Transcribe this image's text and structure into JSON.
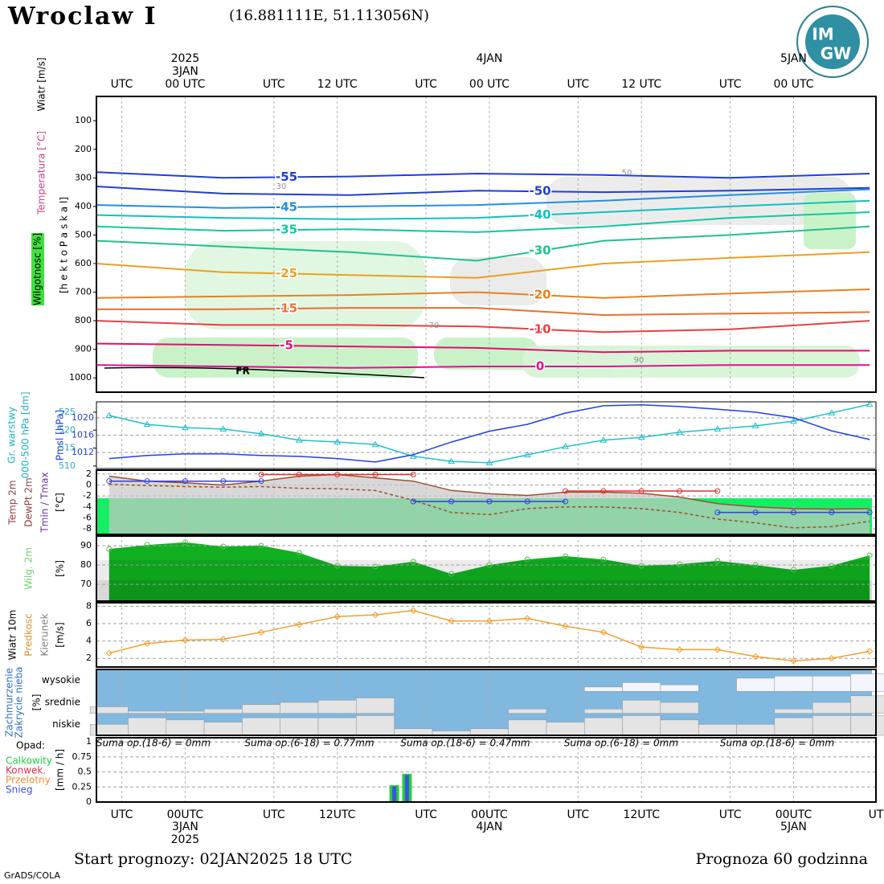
{
  "header": {
    "title": "Wroclaw I",
    "coords": "(16.881111E, 51.113056N)",
    "logo": [
      "IM",
      "GW"
    ],
    "start": "Start prognozy: 02JAN2025 18 UTC",
    "horizon": "Prognoza 60 godzinna",
    "credit": "GrADS/COLA"
  },
  "time": {
    "xlim": [
      -1,
      60.5
    ],
    "hours": [
      0,
      3,
      6,
      9,
      12,
      15,
      18,
      21,
      24,
      27,
      30,
      33,
      36,
      39,
      42,
      45,
      48,
      51,
      54,
      57,
      60
    ],
    "top_ticks": [
      {
        "value": 1,
        "label": "UTC"
      },
      {
        "value": 6,
        "label": "00 UTC"
      },
      {
        "value": 13,
        "label": "UTC"
      },
      {
        "value": 18,
        "label": "12 UTC"
      },
      {
        "value": 25,
        "label": "UTC"
      },
      {
        "value": 30,
        "label": "00 UTC"
      },
      {
        "value": 37,
        "label": "UTC"
      },
      {
        "value": 42,
        "label": "12 UTC"
      },
      {
        "value": 49,
        "label": "UTC"
      },
      {
        "value": 54,
        "label": "00 UTC"
      }
    ],
    "top_dates": [
      {
        "value": 6,
        "label": "2025"
      },
      {
        "value": 6,
        "label": "3JAN"
      },
      {
        "value": 30,
        "label": "4JAN"
      },
      {
        "value": 54,
        "label": "5JAN"
      }
    ],
    "bottom_ticks": [
      {
        "value": 1,
        "label": "UTC"
      },
      {
        "value": 6,
        "label": "00UTC"
      },
      {
        "value": 13,
        "label": "UTC"
      },
      {
        "value": 18,
        "label": "12UTC"
      },
      {
        "value": 25,
        "label": "UTC"
      },
      {
        "value": 30,
        "label": "00UTC"
      },
      {
        "value": 37,
        "label": "UTC"
      },
      {
        "value": 42,
        "label": "12UTC"
      },
      {
        "value": 49,
        "label": "UTC"
      },
      {
        "value": 54,
        "label": "00UTC"
      },
      {
        "value": 60.5,
        "label": "UT"
      }
    ],
    "bottom_dates": [
      {
        "value": 6,
        "label": "3JAN"
      },
      {
        "value": 6,
        "label": "2025"
      },
      {
        "value": 30,
        "label": "4JAN"
      },
      {
        "value": 54,
        "label": "5JAN"
      }
    ]
  },
  "chart_data": [
    {
      "type": "contour",
      "ylabels": [
        "Wiatr [m/s]",
        "Temperatura [°C]",
        "Wilgotnosc [%]",
        "[h e k t o P a s k a l]"
      ],
      "ylim": [
        1050,
        15
      ],
      "yticks": [
        100,
        200,
        300,
        400,
        500,
        600,
        700,
        800,
        900,
        1000
      ],
      "x": [
        -1,
        9,
        19,
        29,
        39,
        49,
        60
      ],
      "series": [
        {
          "name": "-55",
          "color": "#2040d0",
          "values": [
            280,
            300,
            295,
            285,
            290,
            300,
            285
          ]
        },
        {
          "name": "-50",
          "color": "#2040d0",
          "values": [
            330,
            355,
            360,
            345,
            350,
            345,
            335
          ]
        },
        {
          "name": "-45",
          "color": "#2090e0",
          "values": [
            395,
            405,
            400,
            395,
            380,
            360,
            340
          ]
        },
        {
          "name": "-40",
          "color": "#10c0c0",
          "values": [
            430,
            440,
            445,
            440,
            420,
            400,
            380
          ]
        },
        {
          "name": "-35",
          "color": "#10c8a0",
          "values": [
            470,
            485,
            480,
            490,
            470,
            440,
            420
          ]
        },
        {
          "name": "-30",
          "color": "#20c090",
          "values": [
            520,
            540,
            560,
            590,
            520,
            500,
            470
          ]
        },
        {
          "name": "-25",
          "color": "#e8a020",
          "values": [
            600,
            630,
            640,
            650,
            600,
            580,
            560
          ]
        },
        {
          "name": "-20",
          "color": "#e88020",
          "values": [
            720,
            715,
            710,
            700,
            720,
            705,
            690
          ]
        },
        {
          "name": "-15",
          "color": "#e87030",
          "values": [
            760,
            760,
            755,
            755,
            780,
            775,
            770
          ]
        },
        {
          "name": "-10",
          "color": "#e84040",
          "values": [
            800,
            815,
            815,
            820,
            840,
            830,
            800
          ]
        },
        {
          "name": "-5",
          "color": "#e01070",
          "values": [
            880,
            885,
            890,
            895,
            910,
            905,
            905
          ]
        },
        {
          "name": "0",
          "color": "#e01090",
          "values": [
            955,
            960,
            965,
            960,
            960,
            955,
            955
          ]
        }
      ],
      "contour_labels": [
        "30",
        "50",
        "70",
        "90"
      ],
      "annotation": "FR"
    },
    {
      "type": "line",
      "ylabels": [
        "Gr. warstwy",
        "000-500 hPa [dm]",
        "Pmsl [hPa]"
      ],
      "ylim": [
        509.3,
        527.9
      ],
      "yticks": [
        510,
        515,
        520,
        525
      ],
      "y2lim": [
        1008.3,
        1023.7
      ],
      "y2ticks": [
        1012,
        1016,
        1020
      ],
      "series": [
        {
          "color": "#20c0c8",
          "marker": "triangle",
          "values": [
            524.1,
            521.6,
            520.7,
            520.3,
            519,
            517.2,
            516.7,
            516,
            512.7,
            511.3,
            510.9,
            513.1,
            515.4,
            517.2,
            518,
            519.4,
            520.3,
            521.2,
            522.5,
            524.8,
            527.2
          ]
        },
        {
          "color": "#2040e0",
          "axis": "y2",
          "values": [
            1010.6,
            1011.3,
            1011.7,
            1011.7,
            1011.3,
            1011.1,
            1010.6,
            1009.8,
            1011.5,
            1014.4,
            1016.9,
            1018.5,
            1021.1,
            1022.8,
            1023,
            1022.6,
            1022,
            1021.3,
            1020,
            1017,
            1015
          ]
        }
      ]
    },
    {
      "type": "line",
      "ylabels": [
        "Temp 2m",
        "DewPt 2m",
        "Tmin / Tmax",
        "[°C]"
      ],
      "ylim": [
        -9,
        2.7
      ],
      "yticks": [
        2,
        0,
        -2,
        -4,
        -6,
        -8
      ],
      "series": [
        {
          "color": "#a05030",
          "values": [
            1.6,
            0.7,
            0.4,
            0,
            0.7,
            1.6,
            1.9,
            1.3,
            0.7,
            -1,
            -1.6,
            -1.9,
            -1.3,
            -1.3,
            -1.5,
            -2.2,
            -3.4,
            -4,
            -4.3,
            -4.4,
            -4.3
          ]
        },
        {
          "color": "#a05030",
          "dash": true,
          "values": [
            0.1,
            -0.1,
            -0.3,
            -0.4,
            -0.3,
            -0.6,
            -0.7,
            -1,
            -2.8,
            -5,
            -5.4,
            -4.3,
            -4,
            -4,
            -4.3,
            -5,
            -6.2,
            -6.9,
            -7.8,
            -7.6,
            -6.6
          ]
        },
        {
          "color": "#e03030",
          "marker": "circle",
          "values": [
            null,
            null,
            null,
            null,
            1.9,
            1.9,
            1.9,
            1.9,
            1.9,
            null,
            null,
            null,
            -1.1,
            -1.1,
            -1.1,
            -1.1,
            -1.1,
            null,
            null,
            null,
            null
          ]
        },
        {
          "color": "#3040e0",
          "marker": "circle",
          "values": [
            0.7,
            0.7,
            0.7,
            0.7,
            0.7,
            null,
            null,
            null,
            -3,
            -3,
            -3,
            -3,
            -3,
            null,
            null,
            null,
            -5,
            -5,
            -5,
            -5,
            -5
          ]
        }
      ]
    },
    {
      "type": "area",
      "ylabels": [
        "Wilg. 2m",
        "[%]"
      ],
      "ylim": [
        61.3,
        95
      ],
      "yticks": [
        90,
        80,
        70
      ],
      "color": "#10b020",
      "values": [
        88.3,
        90.4,
        91.7,
        89.6,
        90,
        86.3,
        79.6,
        79.2,
        81.7,
        75.4,
        80,
        82.9,
        84.6,
        82.9,
        79.6,
        80.4,
        82.1,
        80,
        77.5,
        79.6,
        85
      ]
    },
    {
      "type": "line",
      "ylabels": [
        "Wiatr 10m",
        "Predkosc",
        "Kierunek",
        "[m/s]"
      ],
      "ylim": [
        1,
        8.4
      ],
      "yticks": [
        8,
        6,
        4,
        2
      ],
      "series": [
        {
          "color": "#f0a030",
          "marker": "diamond",
          "values": [
            2.6,
            3.7,
            4.1,
            4.2,
            5,
            5.9,
            6.8,
            7,
            7.5,
            6.3,
            6.3,
            6.6,
            5.7,
            5,
            3.3,
            3,
            3,
            2.2,
            1.7,
            2,
            2.8
          ]
        }
      ]
    },
    {
      "type": "cloud",
      "ylabels": [
        "Zachmurzenie",
        "Zakrycie nieba",
        "[%]"
      ],
      "levels": [
        "wysokie",
        "srednie",
        "niskie"
      ],
      "series": [
        {
          "values": [
            0,
            0,
            0,
            0,
            0,
            0,
            0,
            0,
            0,
            0,
            0,
            0,
            0,
            20,
            40,
            30,
            0,
            60,
            70,
            70,
            80
          ]
        },
        {
          "values": [
            30,
            10,
            10,
            20,
            40,
            50,
            60,
            70,
            0,
            0,
            0,
            20,
            0,
            20,
            60,
            50,
            0,
            0,
            20,
            50,
            80
          ]
        },
        {
          "values": [
            50,
            80,
            70,
            60,
            80,
            80,
            80,
            90,
            30,
            20,
            30,
            70,
            60,
            80,
            90,
            70,
            50,
            50,
            80,
            90,
            90
          ]
        }
      ]
    },
    {
      "type": "bar",
      "title": "Opad:",
      "ylabels": [
        "[mm / h]"
      ],
      "ylim": [
        0,
        1.07
      ],
      "yticks": [
        1,
        0.75,
        0.5,
        0.25,
        0
      ],
      "sums": [
        "Suma op.(18-6) = 0mm",
        "Suma op.(6-18) = 0.77mm",
        "Suma op.(18-6) = 0.47mm",
        "Suma op.(6-18) = 0mm",
        "Suma op.(18-6) = 0mm"
      ],
      "x": [
        22.5,
        23.5
      ],
      "series": [
        {
          "name": "Calkowity",
          "color": "#20d040",
          "values": [
            0.28,
            0.47
          ]
        },
        {
          "name": "Konwek.",
          "color": "#e03050",
          "values": [
            0,
            0
          ]
        },
        {
          "name": "Przelotny",
          "color": "#f09030",
          "values": [
            0,
            0
          ]
        },
        {
          "name": "Snieg",
          "color": "#4050e0",
          "values": [
            0.26,
            0.45
          ]
        }
      ]
    }
  ]
}
